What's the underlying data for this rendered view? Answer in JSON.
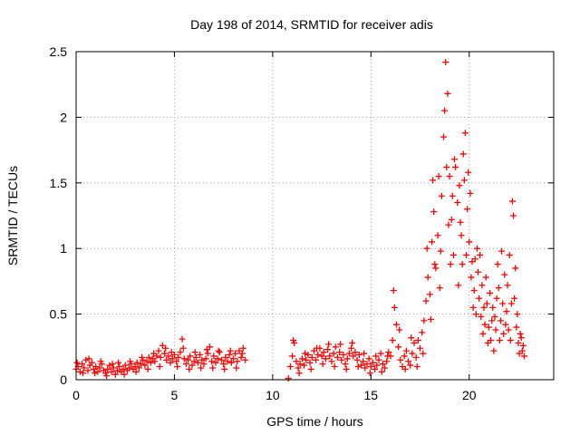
{
  "chart_data": {
    "type": "scatter",
    "title": "Day 198 of 2014, SRMTID for receiver adis",
    "xlabel": "GPS time / hours",
    "ylabel": "SRMTID / TECUs",
    "xlim": [
      0,
      24.3
    ],
    "ylim": [
      0,
      2.5
    ],
    "x_ticks": [
      0,
      5,
      10,
      15,
      20
    ],
    "x_tick_labels": [
      "0",
      "5",
      "10",
      "15",
      "20"
    ],
    "y_ticks": [
      0,
      0.5,
      1,
      1.5,
      2,
      2.5
    ],
    "y_tick_labels": [
      "0",
      "0.5",
      "1",
      "1.5",
      "2",
      "2.5"
    ],
    "grid": true,
    "marker": "+",
    "series": [
      {
        "name": "SRMTID",
        "color": "#ff0000",
        "points": [
          [
            0.0,
            0.08
          ],
          [
            0.1,
            0.1
          ],
          [
            0.2,
            0.06
          ],
          [
            0.3,
            0.12
          ],
          [
            0.4,
            0.09
          ],
          [
            0.5,
            0.15
          ],
          [
            0.6,
            0.07
          ],
          [
            0.7,
            0.11
          ],
          [
            0.8,
            0.13
          ],
          [
            0.9,
            0.08
          ],
          [
            1.0,
            0.1
          ],
          [
            1.1,
            0.06
          ],
          [
            1.2,
            0.09
          ],
          [
            1.3,
            0.12
          ],
          [
            1.4,
            0.07
          ],
          [
            1.5,
            0.05
          ],
          [
            1.6,
            0.08
          ],
          [
            1.7,
            0.11
          ],
          [
            1.8,
            0.06
          ],
          [
            1.9,
            0.09
          ],
          [
            2.0,
            0.04
          ],
          [
            2.1,
            0.07
          ],
          [
            2.2,
            0.1
          ],
          [
            2.3,
            0.06
          ],
          [
            2.4,
            0.08
          ],
          [
            2.5,
            0.11
          ],
          [
            2.6,
            0.07
          ],
          [
            2.7,
            0.09
          ],
          [
            2.8,
            0.12
          ],
          [
            2.9,
            0.08
          ],
          [
            3.0,
            0.1
          ],
          [
            3.1,
            0.13
          ],
          [
            3.2,
            0.09
          ],
          [
            3.3,
            0.12
          ],
          [
            3.4,
            0.15
          ],
          [
            3.5,
            0.11
          ],
          [
            3.6,
            0.14
          ],
          [
            3.7,
            0.17
          ],
          [
            3.8,
            0.13
          ],
          [
            3.9,
            0.16
          ],
          [
            4.0,
            0.14
          ],
          [
            4.1,
            0.18
          ],
          [
            4.2,
            0.22
          ],
          [
            4.3,
            0.17
          ],
          [
            4.4,
            0.26
          ],
          [
            4.5,
            0.2
          ],
          [
            4.6,
            0.15
          ],
          [
            4.7,
            0.18
          ],
          [
            4.8,
            0.13
          ],
          [
            4.9,
            0.16
          ],
          [
            5.0,
            0.19
          ],
          [
            5.1,
            0.14
          ],
          [
            5.2,
            0.17
          ],
          [
            5.3,
            0.21
          ],
          [
            5.4,
            0.31
          ],
          [
            5.5,
            0.16
          ],
          [
            5.6,
            0.12
          ],
          [
            5.7,
            0.15
          ],
          [
            5.8,
            0.18
          ],
          [
            5.9,
            0.11
          ],
          [
            6.0,
            0.14
          ],
          [
            6.1,
            0.17
          ],
          [
            6.2,
            0.13
          ],
          [
            6.3,
            0.19
          ],
          [
            6.4,
            0.15
          ],
          [
            6.5,
            0.12
          ],
          [
            6.6,
            0.16
          ],
          [
            6.7,
            0.2
          ],
          [
            6.8,
            0.25
          ],
          [
            6.9,
            0.14
          ],
          [
            7.0,
            0.18
          ],
          [
            7.1,
            0.13
          ],
          [
            7.2,
            0.16
          ],
          [
            7.3,
            0.21
          ],
          [
            7.4,
            0.15
          ],
          [
            7.5,
            0.12
          ],
          [
            7.6,
            0.17
          ],
          [
            7.7,
            0.14
          ],
          [
            7.8,
            0.19
          ],
          [
            7.9,
            0.13
          ],
          [
            8.0,
            0.16
          ],
          [
            8.1,
            0.2
          ],
          [
            8.2,
            0.14
          ],
          [
            8.3,
            0.22
          ],
          [
            8.4,
            0.17
          ],
          [
            8.5,
            0.24
          ],
          [
            8.6,
            0.15
          ],
          [
            10.8,
            0.01
          ],
          [
            10.9,
            0.1
          ],
          [
            11.0,
            0.18
          ],
          [
            11.1,
            0.28
          ],
          [
            11.2,
            0.14
          ],
          [
            11.3,
            0.09
          ],
          [
            11.4,
            0.12
          ],
          [
            11.5,
            0.16
          ],
          [
            11.6,
            0.11
          ],
          [
            11.7,
            0.15
          ],
          [
            11.8,
            0.19
          ],
          [
            11.9,
            0.13
          ],
          [
            12.0,
            0.17
          ],
          [
            12.1,
            0.22
          ],
          [
            12.2,
            0.15
          ],
          [
            12.3,
            0.19
          ],
          [
            12.4,
            0.24
          ],
          [
            12.5,
            0.18
          ],
          [
            12.6,
            0.21
          ],
          [
            12.7,
            0.16
          ],
          [
            12.8,
            0.23
          ],
          [
            12.9,
            0.18
          ],
          [
            13.0,
            0.14
          ],
          [
            13.1,
            0.2
          ],
          [
            13.2,
            0.25
          ],
          [
            13.3,
            0.17
          ],
          [
            13.4,
            0.21
          ],
          [
            13.5,
            0.15
          ],
          [
            13.6,
            0.19
          ],
          [
            13.7,
            0.12
          ],
          [
            13.8,
            0.16
          ],
          [
            13.9,
            0.2
          ],
          [
            14.0,
            0.24
          ],
          [
            14.1,
            0.18
          ],
          [
            14.2,
            0.21
          ],
          [
            14.3,
            0.15
          ],
          [
            14.4,
            0.19
          ],
          [
            14.5,
            0.11
          ],
          [
            14.6,
            0.14
          ],
          [
            14.7,
            0.09
          ],
          [
            14.8,
            0.12
          ],
          [
            14.9,
            0.16
          ],
          [
            15.0,
            0.1
          ],
          [
            15.1,
            0.13
          ],
          [
            15.2,
            0.08
          ],
          [
            15.3,
            0.11
          ],
          [
            15.4,
            0.15
          ],
          [
            15.5,
            0.2
          ],
          [
            15.6,
            0.12
          ],
          [
            15.7,
            0.09
          ],
          [
            15.8,
            0.14
          ],
          [
            15.9,
            0.21
          ],
          [
            16.0,
            0.18
          ],
          [
            16.1,
            0.3
          ],
          [
            16.2,
            0.55
          ],
          [
            16.3,
            0.42
          ],
          [
            16.4,
            0.25
          ],
          [
            16.5,
            0.15
          ],
          [
            16.6,
            0.1
          ],
          [
            16.7,
            0.18
          ],
          [
            16.8,
            0.22
          ],
          [
            16.9,
            0.14
          ],
          [
            17.0,
            0.11
          ],
          [
            17.1,
            0.2
          ],
          [
            17.2,
            0.28
          ],
          [
            17.3,
            0.17
          ],
          [
            17.4,
            0.3
          ],
          [
            17.5,
            0.24
          ],
          [
            17.6,
            0.36
          ],
          [
            17.7,
            0.45
          ],
          [
            17.8,
            0.6
          ],
          [
            17.9,
            0.78
          ],
          [
            18.0,
            0.65
          ],
          [
            18.1,
            1.05
          ],
          [
            18.2,
            1.28
          ],
          [
            18.3,
            0.85
          ],
          [
            18.4,
            1.1
          ],
          [
            18.5,
            0.7
          ],
          [
            18.6,
            1.4
          ],
          [
            18.7,
            1.85
          ],
          [
            18.8,
            2.42
          ],
          [
            18.9,
            2.18
          ],
          [
            19.0,
            1.55
          ],
          [
            19.1,
            1.22
          ],
          [
            19.2,
            0.95
          ],
          [
            19.3,
            1.62
          ],
          [
            19.4,
            1.35
          ],
          [
            19.5,
            1.48
          ],
          [
            19.6,
            1.1
          ],
          [
            19.7,
            1.72
          ],
          [
            19.8,
            1.88
          ],
          [
            19.9,
            1.3
          ],
          [
            20.0,
            1.05
          ],
          [
            20.1,
            0.78
          ],
          [
            20.2,
            0.55
          ],
          [
            20.3,
            0.92
          ],
          [
            20.4,
            1.0
          ],
          [
            20.5,
            0.62
          ],
          [
            20.6,
            0.48
          ],
          [
            20.7,
            0.35
          ],
          [
            20.8,
            0.42
          ],
          [
            20.9,
            0.58
          ],
          [
            21.0,
            0.4
          ],
          [
            21.1,
            0.3
          ],
          [
            21.2,
            0.55
          ],
          [
            21.3,
            0.48
          ],
          [
            21.4,
            0.62
          ],
          [
            21.5,
            0.7
          ],
          [
            21.6,
            0.45
          ],
          [
            21.7,
            0.58
          ],
          [
            21.8,
            0.8
          ],
          [
            21.9,
            0.52
          ],
          [
            22.0,
            0.38
          ],
          [
            22.1,
            0.3
          ],
          [
            22.2,
            1.36
          ],
          [
            22.3,
            0.62
          ],
          [
            22.4,
            0.4
          ],
          [
            22.5,
            0.28
          ],
          [
            22.6,
            0.35
          ],
          [
            22.7,
            0.22
          ],
          [
            22.8,
            0.18
          ],
          [
            0.05,
            0.13
          ],
          [
            0.35,
            0.05
          ],
          [
            0.65,
            0.16
          ],
          [
            0.95,
            0.05
          ],
          [
            1.25,
            0.14
          ],
          [
            1.55,
            0.03
          ],
          [
            1.85,
            0.12
          ],
          [
            2.15,
            0.13
          ],
          [
            2.45,
            0.04
          ],
          [
            2.75,
            0.14
          ],
          [
            3.05,
            0.06
          ],
          [
            3.35,
            0.17
          ],
          [
            3.65,
            0.08
          ],
          [
            3.95,
            0.2
          ],
          [
            4.25,
            0.1
          ],
          [
            4.55,
            0.24
          ],
          [
            4.85,
            0.21
          ],
          [
            5.15,
            0.1
          ],
          [
            5.45,
            0.24
          ],
          [
            5.75,
            0.08
          ],
          [
            6.05,
            0.21
          ],
          [
            6.35,
            0.09
          ],
          [
            6.65,
            0.23
          ],
          [
            6.95,
            0.09
          ],
          [
            7.25,
            0.22
          ],
          [
            7.55,
            0.08
          ],
          [
            7.85,
            0.22
          ],
          [
            8.15,
            0.09
          ],
          [
            8.45,
            0.2
          ],
          [
            11.05,
            0.3
          ],
          [
            11.35,
            0.05
          ],
          [
            11.65,
            0.2
          ],
          [
            11.95,
            0.08
          ],
          [
            12.25,
            0.24
          ],
          [
            12.55,
            0.12
          ],
          [
            12.85,
            0.27
          ],
          [
            13.15,
            0.1
          ],
          [
            13.45,
            0.27
          ],
          [
            13.75,
            0.08
          ],
          [
            14.05,
            0.28
          ],
          [
            14.35,
            0.1
          ],
          [
            14.65,
            0.2
          ],
          [
            14.95,
            0.05
          ],
          [
            15.25,
            0.18
          ],
          [
            15.55,
            0.06
          ],
          [
            15.85,
            0.18
          ],
          [
            16.15,
            0.68
          ],
          [
            16.45,
            0.38
          ],
          [
            16.75,
            0.08
          ],
          [
            17.05,
            0.32
          ],
          [
            17.35,
            0.1
          ],
          [
            17.65,
            0.2
          ],
          [
            17.85,
            1.0
          ],
          [
            18.05,
            0.46
          ],
          [
            18.15,
            1.52
          ],
          [
            18.25,
            0.88
          ],
          [
            18.45,
            1.55
          ],
          [
            18.55,
            0.98
          ],
          [
            18.75,
            2.05
          ],
          [
            18.85,
            1.62
          ],
          [
            18.95,
            1.18
          ],
          [
            19.05,
            0.88
          ],
          [
            19.15,
            1.4
          ],
          [
            19.25,
            1.68
          ],
          [
            19.45,
            0.72
          ],
          [
            19.55,
            1.2
          ],
          [
            19.65,
            0.88
          ],
          [
            19.75,
            1.52
          ],
          [
            19.85,
            0.95
          ],
          [
            19.95,
            1.58
          ],
          [
            20.05,
            1.42
          ],
          [
            20.15,
            0.9
          ],
          [
            20.25,
            0.68
          ],
          [
            20.35,
            0.5
          ],
          [
            20.45,
            0.82
          ],
          [
            20.55,
            0.95
          ],
          [
            20.65,
            0.72
          ],
          [
            20.75,
            0.55
          ],
          [
            20.85,
            0.78
          ],
          [
            20.95,
            0.28
          ],
          [
            21.05,
            0.66
          ],
          [
            21.15,
            0.45
          ],
          [
            21.25,
            0.22
          ],
          [
            21.35,
            0.38
          ],
          [
            21.45,
            0.88
          ],
          [
            21.55,
            0.3
          ],
          [
            21.65,
            0.98
          ],
          [
            21.75,
            0.35
          ],
          [
            21.85,
            0.42
          ],
          [
            21.95,
            0.72
          ],
          [
            22.05,
            0.95
          ],
          [
            22.15,
            0.58
          ],
          [
            22.25,
            1.25
          ],
          [
            22.35,
            0.85
          ],
          [
            22.45,
            0.5
          ],
          [
            22.55,
            0.2
          ],
          [
            22.65,
            0.32
          ],
          [
            22.75,
            0.26
          ]
        ]
      }
    ]
  }
}
